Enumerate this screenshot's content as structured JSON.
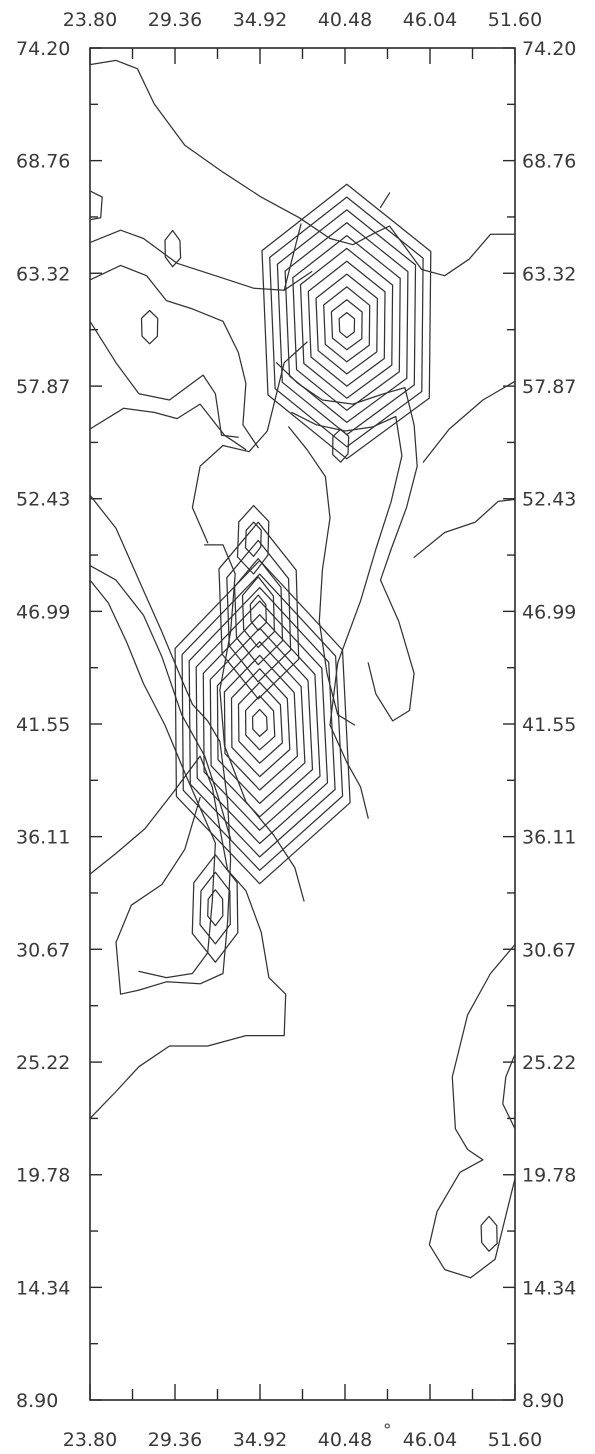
{
  "chart_data": {
    "type": "contour",
    "title": "",
    "xlabel": "",
    "ylabel": "",
    "xlim": [
      23.8,
      51.6
    ],
    "ylim": [
      8.9,
      74.2
    ],
    "x_tick_labels": [
      "23.80",
      "29.36",
      "34.92",
      "40.48",
      "46.04",
      "51.60"
    ],
    "y_tick_labels": [
      "74.20",
      "68.76",
      "63.32",
      "57.87",
      "52.43",
      "46.99",
      "41.55",
      "36.11",
      "30.67",
      "25.22",
      "19.78",
      "14.34",
      "8.90"
    ],
    "x_ticks": [
      23.8,
      29.36,
      34.92,
      40.48,
      46.04,
      51.6
    ],
    "y_ticks": [
      74.2,
      68.76,
      63.32,
      57.87,
      52.43,
      46.99,
      41.55,
      36.11,
      30.67,
      25.22,
      19.78,
      14.34,
      8.9
    ],
    "annotation": "°",
    "peaks": [
      {
        "x": 40.6,
        "y": 60.8,
        "levels": 11
      },
      {
        "x": 34.8,
        "y": 46.9,
        "levels": 5
      },
      {
        "x": 34.9,
        "y": 41.6,
        "levels": 12
      },
      {
        "x": 32.0,
        "y": 32.7,
        "levels": 3
      },
      {
        "x": 34.5,
        "y": 50.5,
        "levels": 2
      },
      {
        "x": 40.2,
        "y": 55.0,
        "levels": 1
      },
      {
        "x": 27.7,
        "y": 60.7,
        "levels": 1
      },
      {
        "x": 49.9,
        "y": 16.9,
        "levels": 1
      },
      {
        "x": 29.2,
        "y": 64.5,
        "levels": 1
      }
    ],
    "contours": [
      [
        [
          23.8,
          73.4
        ],
        [
          25.5,
          73.6
        ],
        [
          26.9,
          73.2
        ],
        [
          28.0,
          71.5
        ],
        [
          30.0,
          69.5
        ],
        [
          32.5,
          68.2
        ],
        [
          35.0,
          67.0
        ],
        [
          37.5,
          66.0
        ],
        [
          39.5,
          65.0
        ],
        [
          41.0,
          64.7
        ],
        [
          42.5,
          65.3
        ],
        [
          43.4,
          65.6
        ],
        [
          44.5,
          64.5
        ],
        [
          45.5,
          63.5
        ],
        [
          47.0,
          63.2
        ],
        [
          48.6,
          64.0
        ],
        [
          50.0,
          65.2
        ],
        [
          51.6,
          65.2
        ]
      ],
      [
        [
          23.8,
          67.3
        ],
        [
          24.6,
          67.0
        ],
        [
          24.5,
          66.0
        ],
        [
          23.8,
          65.9
        ]
      ],
      [
        [
          23.8,
          64.8
        ],
        [
          25.8,
          65.4
        ],
        [
          27.3,
          65.0
        ],
        [
          29.5,
          63.8
        ],
        [
          32.0,
          63.2
        ],
        [
          34.5,
          62.6
        ],
        [
          36.5,
          62.5
        ],
        [
          38.3,
          63.4
        ]
      ],
      [
        [
          23.8,
          63.0
        ],
        [
          25.8,
          63.7
        ],
        [
          27.5,
          63.2
        ],
        [
          28.8,
          62.0
        ],
        [
          30.5,
          61.6
        ],
        [
          32.5,
          61.0
        ],
        [
          33.5,
          59.5
        ],
        [
          34.0,
          58.0
        ],
        [
          33.8,
          56.0
        ],
        [
          34.8,
          54.9
        ]
      ],
      [
        [
          23.8,
          61.0
        ],
        [
          25.5,
          59.0
        ],
        [
          27.0,
          57.5
        ],
        [
          29.0,
          57.2
        ],
        [
          31.2,
          58.4
        ],
        [
          32.0,
          57.5
        ],
        [
          32.4,
          55.5
        ],
        [
          33.5,
          55.4
        ]
      ],
      [
        [
          23.8,
          55.8
        ],
        [
          26.0,
          56.8
        ],
        [
          28.0,
          56.6
        ],
        [
          29.5,
          56.3
        ],
        [
          31.0,
          57.0
        ],
        [
          32.6,
          55.5
        ],
        [
          34.0,
          54.8
        ]
      ],
      [
        [
          23.8,
          52.6
        ],
        [
          25.5,
          51.0
        ],
        [
          27.3,
          48.0
        ],
        [
          28.5,
          46.0
        ],
        [
          29.8,
          43.7
        ],
        [
          30.5,
          42.5
        ],
        [
          31.5,
          41.7
        ],
        [
          32.3,
          40.7
        ],
        [
          32.8,
          37.8
        ],
        [
          33.0,
          35.0
        ],
        [
          32.8,
          32.0
        ],
        [
          32.5,
          29.5
        ],
        [
          31.0,
          29.0
        ],
        [
          28.8,
          29.1
        ],
        [
          27.0,
          28.7
        ],
        [
          25.8,
          28.5
        ],
        [
          25.5,
          31.0
        ],
        [
          26.5,
          32.8
        ],
        [
          28.5,
          33.8
        ],
        [
          30.0,
          35.5
        ],
        [
          31.0,
          38.0
        ]
      ],
      [
        [
          23.8,
          49.2
        ],
        [
          25.5,
          48.5
        ],
        [
          27.3,
          46.8
        ],
        [
          28.5,
          44.8
        ],
        [
          29.8,
          42.0
        ],
        [
          31.3,
          40.0
        ],
        [
          32.2,
          38.0
        ],
        [
          33.0,
          36.0
        ]
      ],
      [
        [
          23.8,
          48.5
        ],
        [
          25.0,
          47.4
        ],
        [
          26.2,
          45.5
        ],
        [
          27.3,
          43.5
        ],
        [
          28.7,
          41.5
        ],
        [
          30.0,
          39.2
        ],
        [
          31.0,
          37.5
        ],
        [
          32.0,
          35.8
        ],
        [
          31.8,
          33.0
        ],
        [
          31.5,
          30.5
        ],
        [
          30.5,
          29.5
        ],
        [
          28.8,
          29.3
        ],
        [
          27.0,
          29.6
        ]
      ],
      [
        [
          23.8,
          34.3
        ],
        [
          25.5,
          35.3
        ],
        [
          27.4,
          36.5
        ],
        [
          29.3,
          38.3
        ],
        [
          31.0,
          40.0
        ],
        [
          31.8,
          38.5
        ],
        [
          32.3,
          36.5
        ],
        [
          32.8,
          34.5
        ],
        [
          34.0,
          33.5
        ],
        [
          35.0,
          31.5
        ],
        [
          35.5,
          29.3
        ],
        [
          36.6,
          28.5
        ],
        [
          36.5,
          26.5
        ],
        [
          34.0,
          26.5
        ],
        [
          31.5,
          26.0
        ],
        [
          29.0,
          26.0
        ],
        [
          27.0,
          25.0
        ],
        [
          25.5,
          23.8
        ],
        [
          23.8,
          22.5
        ]
      ],
      [
        [
          31.5,
          50.3
        ],
        [
          30.5,
          52.0
        ],
        [
          31.0,
          54.0
        ],
        [
          32.5,
          55.0
        ],
        [
          34.2,
          54.7
        ],
        [
          35.4,
          55.7
        ],
        [
          36.0,
          57.5
        ],
        [
          36.5,
          59.0
        ],
        [
          38.0,
          60.0
        ]
      ],
      [
        [
          31.3,
          50.2
        ],
        [
          32.5,
          50.2
        ],
        [
          33.3,
          48.8
        ],
        [
          33.0,
          46.0
        ],
        [
          32.3,
          43.2
        ],
        [
          32.6,
          40.5
        ],
        [
          34.0,
          37.8
        ],
        [
          35.8,
          36.2
        ],
        [
          37.2,
          34.6
        ],
        [
          37.8,
          33.0
        ]
      ],
      [
        [
          36.0,
          59.0
        ],
        [
          37.4,
          58.0
        ],
        [
          39.0,
          57.2
        ],
        [
          41.0,
          57.0
        ],
        [
          43.0,
          57.5
        ],
        [
          44.4,
          57.8
        ],
        [
          45.0,
          56.0
        ],
        [
          45.2,
          54.0
        ],
        [
          44.5,
          52.0
        ],
        [
          43.5,
          50.0
        ],
        [
          42.8,
          48.5
        ],
        [
          44.0,
          46.5
        ],
        [
          45.0,
          44.0
        ],
        [
          44.7,
          42.2
        ],
        [
          43.6,
          41.7
        ],
        [
          42.5,
          43.0
        ],
        [
          42.0,
          44.5
        ]
      ],
      [
        [
          37.0,
          56.6
        ],
        [
          38.6,
          56.0
        ],
        [
          40.5,
          55.7
        ],
        [
          42.3,
          55.9
        ],
        [
          43.8,
          56.4
        ],
        [
          44.2,
          54.5
        ],
        [
          43.5,
          52.3
        ],
        [
          42.5,
          50.0
        ],
        [
          41.5,
          47.5
        ],
        [
          40.0,
          44.5
        ],
        [
          39.5,
          41.5
        ],
        [
          40.6,
          39.7
        ],
        [
          41.5,
          38.5
        ],
        [
          42.0,
          37.0
        ]
      ],
      [
        [
          36.8,
          55.9
        ],
        [
          38.0,
          54.8
        ],
        [
          39.2,
          53.5
        ],
        [
          39.5,
          51.5
        ],
        [
          39.0,
          49.0
        ],
        [
          38.8,
          46.5
        ],
        [
          39.3,
          44.0
        ],
        [
          40.0,
          42.0
        ],
        [
          41.1,
          41.5
        ]
      ],
      [
        [
          45.0,
          49.6
        ],
        [
          47.0,
          50.8
        ],
        [
          49.0,
          51.3
        ],
        [
          50.5,
          52.3
        ],
        [
          51.6,
          52.4
        ]
      ],
      [
        [
          45.6,
          54.2
        ],
        [
          47.3,
          55.8
        ],
        [
          49.5,
          57.2
        ],
        [
          51.6,
          58.1
        ]
      ],
      [
        [
          36.5,
          62.5
        ],
        [
          37.6,
          65.7
        ]
      ],
      [
        [
          42.8,
          66.5
        ],
        [
          43.4,
          67.2
        ]
      ],
      [
        [
          51.6,
          30.9
        ],
        [
          50.0,
          29.5
        ],
        [
          48.5,
          27.5
        ],
        [
          47.5,
          24.5
        ],
        [
          47.7,
          22.0
        ],
        [
          48.5,
          21.0
        ],
        [
          49.5,
          20.5
        ],
        [
          48.0,
          19.9
        ],
        [
          46.5,
          18.0
        ],
        [
          46.0,
          16.4
        ],
        [
          47.0,
          15.2
        ],
        [
          48.7,
          14.8
        ],
        [
          50.3,
          15.7
        ],
        [
          50.9,
          17.5
        ],
        [
          51.6,
          19.6
        ]
      ],
      [
        [
          51.6,
          25.6
        ],
        [
          51.0,
          24.5
        ],
        [
          50.8,
          23.2
        ],
        [
          51.6,
          22.0
        ]
      ]
    ]
  }
}
